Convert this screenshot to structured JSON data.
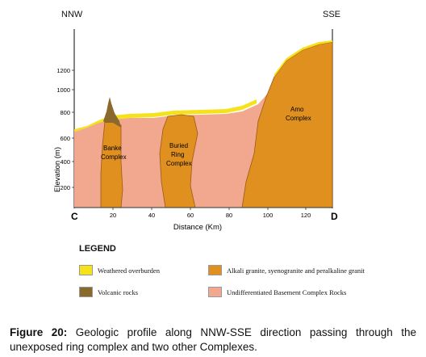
{
  "figure": {
    "direction_left": "NNW",
    "direction_right": "SSE",
    "endpoint_left": "C",
    "endpoint_right": "D",
    "y_axis_label": "Elevation (m)",
    "x_axis_label": "Distance (Km)",
    "y_ticks": [
      "1200",
      "1000",
      "800",
      "600",
      "400",
      "200"
    ],
    "x_ticks": [
      "20",
      "40",
      "60",
      "80",
      "100",
      "120"
    ],
    "units": [
      {
        "name": "Banke Complex",
        "line1": "Banke",
        "line2": "Complex"
      },
      {
        "name": "Buried Ring Complex",
        "line1": "Buried",
        "line2": "Ring",
        "line3": "Complex"
      },
      {
        "name": "Amo Complex",
        "line1": "Amo",
        "line2": "Complex"
      }
    ],
    "colors": {
      "overburden": "#f5e21a",
      "volcanic": "#8a6a2c",
      "granite": "#e0901e",
      "basement": "#f2a88f",
      "granite_edge": "#9b5a14"
    }
  },
  "legend": {
    "title": "LEGEND",
    "items": [
      {
        "label": "Weathered overburden"
      },
      {
        "label": "Volcanic rocks"
      },
      {
        "label": "Alkali granite, syenogranite and peralkaline granit"
      },
      {
        "label": "Undifferentiated Basement Complex Rocks"
      }
    ]
  },
  "caption": {
    "label": "Figure 20:",
    "text": " Geologic profile along NNW-SSE direction passing through the unexposed ring complex and two other Complexes."
  }
}
